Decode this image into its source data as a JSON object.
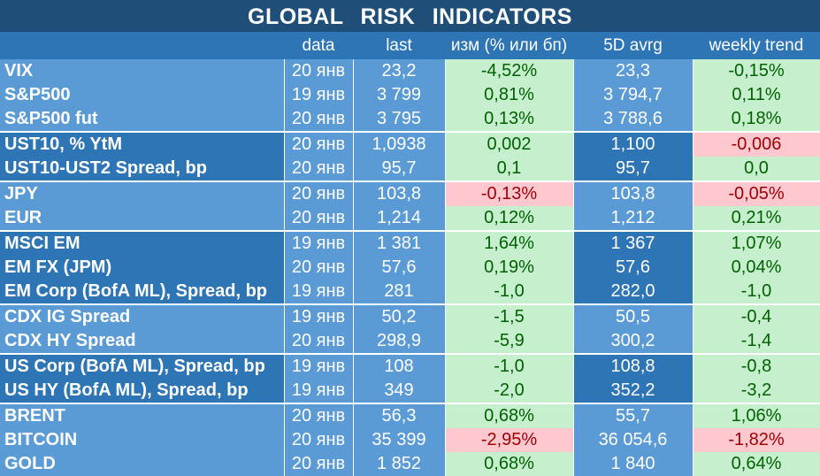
{
  "title": "GLOBAL   RISK   INDICATORS",
  "columns": {
    "name": "",
    "data": "data",
    "last": "last",
    "change": "изм (% или бп)",
    "avg5d": "5D avrg",
    "weekly": "weekly trend"
  },
  "colors": {
    "title_bg": "#1f4e79",
    "header_bg": "#2e75b6",
    "light_blue": "#5b9bd5",
    "dark_blue": "#2e75b6",
    "positive_bg": "#c6efce",
    "positive_text": "#006100",
    "negative_bg": "#ffc7ce",
    "negative_text": "#9c0006"
  },
  "rows": [
    {
      "name": "VIX",
      "date": "20 янв",
      "last": "23,2",
      "change": "-4,52%",
      "change_sign": "pos",
      "avg": "23,3",
      "weekly": "-0,15%",
      "weekly_sign": "pos"
    },
    {
      "name": "S&P500",
      "date": "19 янв",
      "last": "3 799",
      "change": "0,81%",
      "change_sign": "pos",
      "avg": "3 794,7",
      "weekly": "0,11%",
      "weekly_sign": "pos"
    },
    {
      "name": "S&P500 fut",
      "date": "20 янв",
      "last": "3 795",
      "change": "0,13%",
      "change_sign": "pos",
      "avg": "3 788,6",
      "weekly": "0,18%",
      "weekly_sign": "pos"
    },
    {
      "name": "UST10, % YtM",
      "date": "20 янв",
      "last": "1,0938",
      "change": "0,002",
      "change_sign": "pos",
      "avg": "1,100",
      "weekly": "-0,006",
      "weekly_sign": "neg"
    },
    {
      "name": "UST10-UST2 Spread, bp",
      "date": "20 янв",
      "last": "95,7",
      "change": "0,1",
      "change_sign": "pos",
      "avg": "95,7",
      "weekly": "0,0",
      "weekly_sign": "pos"
    },
    {
      "name": "JPY",
      "date": "20 янв",
      "last": "103,8",
      "change": "-0,13%",
      "change_sign": "neg",
      "avg": "103,8",
      "weekly": "-0,05%",
      "weekly_sign": "neg"
    },
    {
      "name": "EUR",
      "date": "20 янв",
      "last": "1,214",
      "change": "0,12%",
      "change_sign": "pos",
      "avg": "1,212",
      "weekly": "0,21%",
      "weekly_sign": "pos"
    },
    {
      "name": "MSCI EM",
      "date": "19 янв",
      "last": "1 381",
      "change": "1,64%",
      "change_sign": "pos",
      "avg": "1 367",
      "weekly": "1,07%",
      "weekly_sign": "pos"
    },
    {
      "name": "EM FX (JPM)",
      "date": "20 янв",
      "last": "57,6",
      "change": "0,19%",
      "change_sign": "pos",
      "avg": "57,6",
      "weekly": "0,04%",
      "weekly_sign": "pos"
    },
    {
      "name": "EM Corp (BofA ML), Spread, bp",
      "date": "19 янв",
      "last": "281",
      "change": "-1,0",
      "change_sign": "pos",
      "avg": "282,0",
      "weekly": "-1,0",
      "weekly_sign": "pos"
    },
    {
      "name": "CDX IG Spread",
      "date": "19 янв",
      "last": "50,2",
      "change": "-1,5",
      "change_sign": "pos",
      "avg": "50,5",
      "weekly": "-0,4",
      "weekly_sign": "pos"
    },
    {
      "name": "CDX HY Spread",
      "date": "20 янв",
      "last": "298,9",
      "change": "-5,9",
      "change_sign": "pos",
      "avg": "300,2",
      "weekly": "-1,4",
      "weekly_sign": "pos"
    },
    {
      "name": "US Corp (BofA ML), Spread, bp",
      "date": "19 янв",
      "last": "108",
      "change": "-1,0",
      "change_sign": "pos",
      "avg": "108,8",
      "weekly": "-0,8",
      "weekly_sign": "pos"
    },
    {
      "name": "US HY (BofA ML), Spread, bp",
      "date": "19 янв",
      "last": "349",
      "change": "-2,0",
      "change_sign": "pos",
      "avg": "352,2",
      "weekly": "-3,2",
      "weekly_sign": "pos"
    },
    {
      "name": "BRENT",
      "date": "20 янв",
      "last": "56,3",
      "change": "0,68%",
      "change_sign": "pos",
      "avg": "55,7",
      "weekly": "1,06%",
      "weekly_sign": "pos"
    },
    {
      "name": "BITCOIN",
      "date": "20 янв",
      "last": "35 399",
      "change": "-2,95%",
      "change_sign": "neg",
      "avg": "36 054,6",
      "weekly": "-1,82%",
      "weekly_sign": "neg"
    },
    {
      "name": "GOLD",
      "date": "20 янв",
      "last": "1 852",
      "change": "0,68%",
      "change_sign": "pos",
      "avg": "1 840",
      "weekly": "0,64%",
      "weekly_sign": "pos"
    }
  ]
}
